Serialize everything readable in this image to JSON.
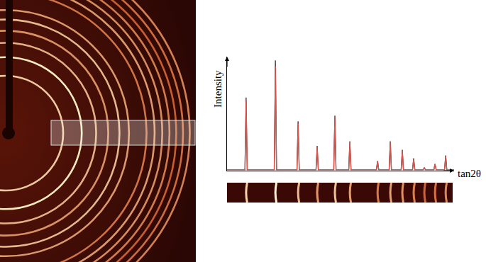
{
  "chart_data": {
    "type": "line",
    "xlabel": "tan2θ",
    "ylabel": "Intensity",
    "x": [
      0,
      0.079,
      0.084,
      0.089,
      0.208,
      0.213,
      0.218,
      0.308,
      0.313,
      0.318,
      0.392,
      0.397,
      0.402,
      0.47,
      0.475,
      0.48,
      0.536,
      0.541,
      0.546,
      0.658,
      0.663,
      0.668,
      0.714,
      0.719,
      0.724,
      0.767,
      0.772,
      0.777,
      0.817,
      0.822,
      0.827,
      0.864,
      0.869,
      0.874,
      0.911,
      0.916,
      0.921,
      0.958,
      0.963,
      0.968,
      1
    ],
    "series": [
      {
        "color": "#333333",
        "values": [
          0.01,
          0.01,
          0.77,
          0.01,
          0.01,
          1.16,
          0.01,
          0.01,
          0.52,
          0.01,
          0.01,
          0.26,
          0.01,
          0.01,
          0.58,
          0.01,
          0.01,
          0.31,
          0.01,
          0.01,
          0.1,
          0.01,
          0.01,
          0.31,
          0.01,
          0.01,
          0.22,
          0.01,
          0.01,
          0.13,
          0.01,
          0.01,
          0.03,
          0.01,
          0.01,
          0.07,
          0.01,
          0.01,
          0.16,
          0.01,
          0.01
        ]
      },
      {
        "color": "#e0524a",
        "values": [
          0.01,
          0.01,
          0.74,
          0.01,
          0.01,
          1.1,
          0.01,
          0.01,
          0.5,
          0.01,
          0.01,
          0.25,
          0.01,
          0.01,
          0.56,
          0.01,
          0.01,
          0.3,
          0.01,
          0.01,
          0.1,
          0.01,
          0.01,
          0.3,
          0.01,
          0.01,
          0.21,
          0.01,
          0.01,
          0.12,
          0.01,
          0.01,
          0.03,
          0.01,
          0.01,
          0.07,
          0.01,
          0.01,
          0.15,
          0.01,
          0.01
        ]
      }
    ],
    "xlim": [
      0,
      1
    ],
    "ylim": [
      0,
      1.2
    ],
    "xticks": [],
    "yticks": [],
    "tick_labels": false,
    "grid": false
  }
}
